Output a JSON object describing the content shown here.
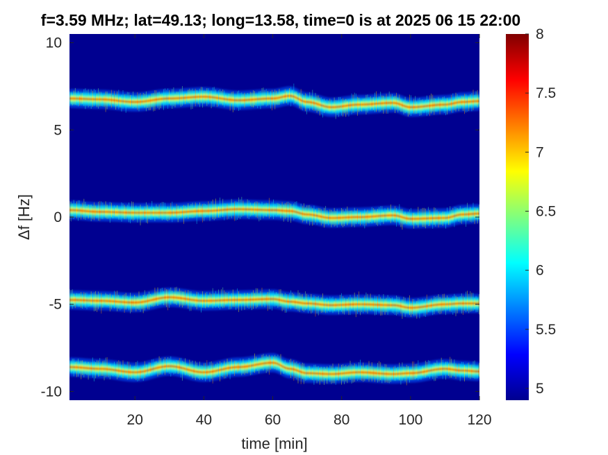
{
  "chart_data": {
    "type": "heatmap",
    "title": "f=3.59 MHz;  lat=49.13; long=13.58, time=0 is at 2025 06 15 22:00",
    "xlabel": "time [min]",
    "ylabel": "Δf [Hz]",
    "xlim": [
      1,
      120
    ],
    "ylim": [
      -10.5,
      10.5
    ],
    "xticks": [
      20,
      40,
      60,
      80,
      100,
      120
    ],
    "yticks": [
      -10,
      -5,
      0,
      5,
      10
    ],
    "colorbar": {
      "colormap": "jet",
      "clim": [
        4.9,
        8
      ],
      "ticks": [
        5,
        5.5,
        6,
        6.5,
        7,
        7.5,
        8
      ]
    },
    "background_value": 4.95,
    "bands": [
      {
        "name": "",
        "x": [
          1,
          10,
          20,
          30,
          40,
          50,
          60,
          65,
          70,
          77,
          85,
          95,
          100,
          110,
          115,
          120
        ],
        "y": [
          6.8,
          6.75,
          6.6,
          6.8,
          6.9,
          6.7,
          6.8,
          6.95,
          6.6,
          6.3,
          6.45,
          6.55,
          6.3,
          6.45,
          6.6,
          6.65
        ]
      },
      {
        "name": "",
        "x": [
          1,
          10,
          20,
          30,
          40,
          50,
          60,
          65,
          70,
          77,
          85,
          95,
          100,
          110,
          115,
          120
        ],
        "y": [
          0.4,
          0.3,
          0.25,
          0.25,
          0.35,
          0.45,
          0.4,
          0.35,
          0.15,
          -0.05,
          0.0,
          0.1,
          -0.1,
          -0.05,
          0.15,
          0.2
        ]
      },
      {
        "name": "",
        "x": [
          1,
          10,
          20,
          30,
          40,
          50,
          60,
          65,
          70,
          77,
          85,
          95,
          100,
          110,
          115,
          120
        ],
        "y": [
          -4.75,
          -4.8,
          -4.9,
          -4.6,
          -4.8,
          -4.75,
          -4.7,
          -4.85,
          -4.95,
          -5.05,
          -5.0,
          -5.05,
          -5.2,
          -5.0,
          -4.95,
          -4.95
        ]
      },
      {
        "name": "",
        "x": [
          1,
          10,
          20,
          30,
          40,
          50,
          60,
          65,
          70,
          77,
          85,
          95,
          100,
          110,
          115,
          120
        ],
        "y": [
          -8.6,
          -8.7,
          -8.9,
          -8.55,
          -8.9,
          -8.6,
          -8.35,
          -8.7,
          -8.95,
          -9.0,
          -8.9,
          -9.0,
          -8.95,
          -8.7,
          -8.8,
          -8.85
        ]
      }
    ]
  }
}
